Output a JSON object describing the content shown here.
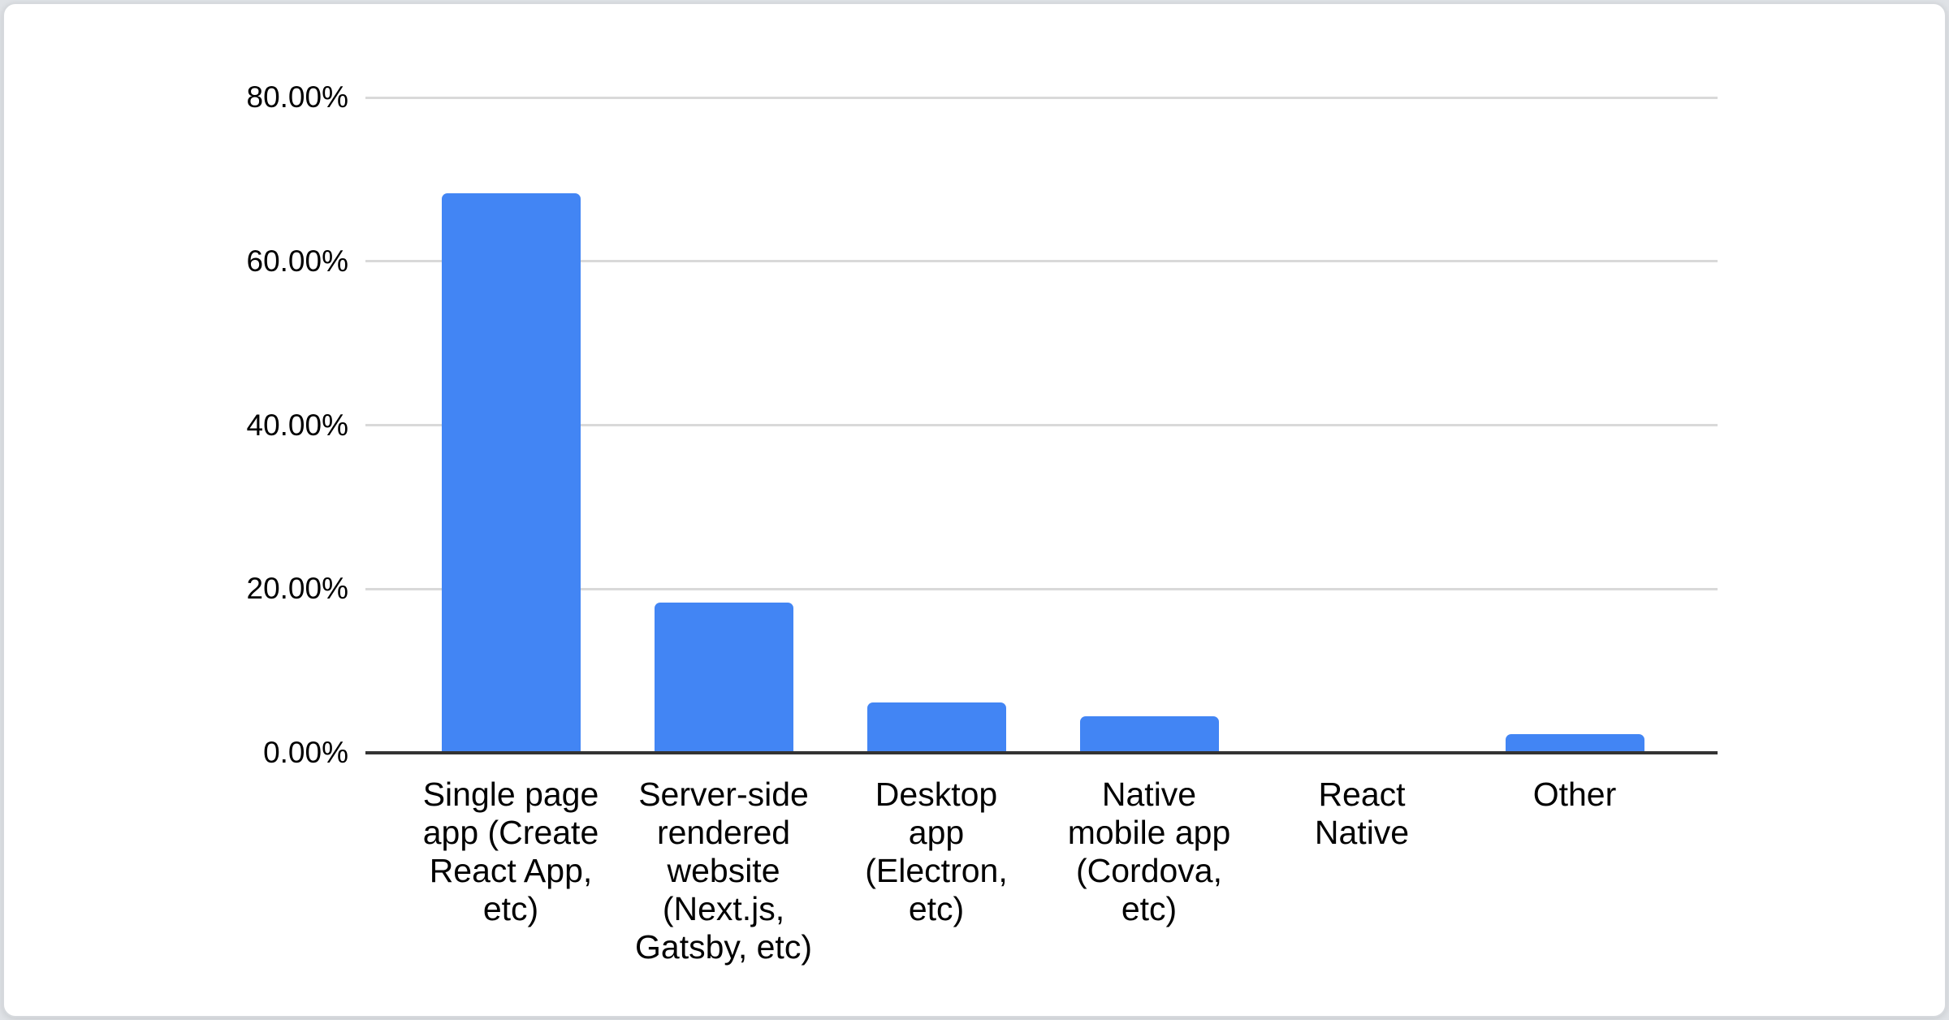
{
  "chart_data": {
    "type": "bar",
    "title": "",
    "xlabel": "",
    "ylabel": "",
    "categories": [
      "Single page app (Create React App, etc)",
      "Server-side rendered website (Next.js, Gatsby, etc)",
      "Desktop app (Electron, etc)",
      "Native mobile app (Cordova, etc)",
      "React Native",
      "Other"
    ],
    "category_display_lines": [
      "Single page\napp (Create\nReact App,\netc)",
      "Server-side\nrendered\nwebsite\n(Next.js,\nGatsby, etc)",
      "Desktop\napp\n(Electron,\netc)",
      "Native\nmobile app\n(Cordova,\netc)",
      "React\nNative",
      "Other"
    ],
    "values": [
      68.3,
      18.3,
      6.1,
      4.5,
      0,
      2.3
    ],
    "value_format": "percent",
    "ylim": [
      0,
      80
    ],
    "yticks": [
      {
        "value": 80,
        "label": "80.00%"
      },
      {
        "value": 60,
        "label": "60.00%"
      },
      {
        "value": 40,
        "label": "40.00%"
      },
      {
        "value": 20,
        "label": "20.00%"
      },
      {
        "value": 0,
        "label": "0.00%"
      }
    ],
    "grid": true,
    "legend": false,
    "colors": {
      "bar": "#4285f4",
      "gridline": "#d9d9d9",
      "axis_line": "#333333",
      "text": "#000000",
      "card_background": "#ffffff",
      "card_border": "#d6d9dd"
    }
  }
}
